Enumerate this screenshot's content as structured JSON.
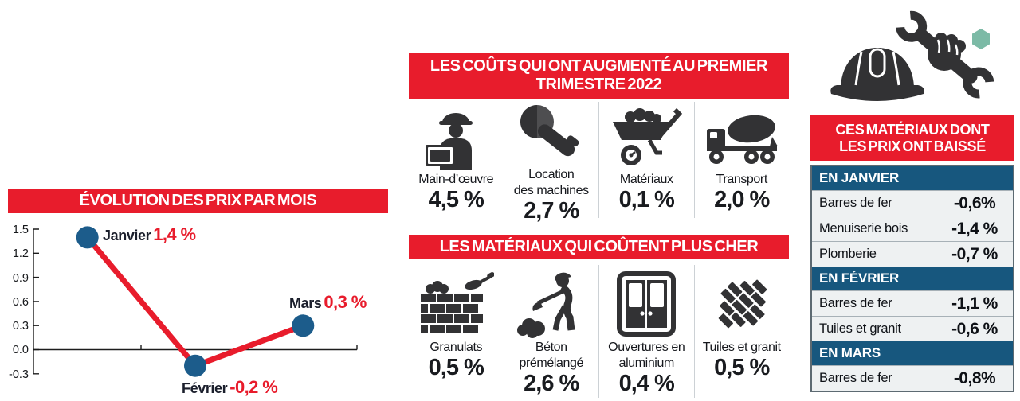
{
  "colors": {
    "red": "#e81c2c",
    "table_header_blue": "#17577e",
    "dot_blue": "#1c5c8b",
    "row_bg": "#eef1f2",
    "icon_dark": "#323234",
    "nut_green": "#7cbaa6"
  },
  "chart_data": {
    "type": "line",
    "title": "ÉVOLUTION DES PRIX PAR MOIS",
    "categories": [
      "Janvier",
      "Février",
      "Mars"
    ],
    "values": [
      1.4,
      -0.2,
      0.3
    ],
    "point_labels": [
      {
        "month": "Janvier",
        "value": "1,4 %"
      },
      {
        "month": "Février",
        "value": "-0,2 %"
      },
      {
        "month": "Mars",
        "value": "0,3 %"
      }
    ],
    "ylim": [
      -0.3,
      1.5
    ],
    "ytick_labels": [
      "1.5",
      "1.2",
      "0.9",
      "0.6",
      "0.3",
      "0.0",
      "-0.3"
    ],
    "grid": false,
    "legend": "none",
    "line_color": "#e81c2c",
    "marker_color": "#1c5c8b"
  },
  "costs_section": {
    "title_line1": "LES COÛTS QUI ONT AUGMENTÉ AU PREMIER",
    "title_line2": "TRIMESTRE 2022",
    "items": [
      {
        "icon": "worker-laptop-icon",
        "label_lines": [
          "Main-d’œuvre"
        ],
        "value": "4,5 %"
      },
      {
        "icon": "angle-grinder-icon",
        "label_lines": [
          "Location",
          "des machines"
        ],
        "value": "2,7 %"
      },
      {
        "icon": "wheelbarrow-icon",
        "label_lines": [
          "Matériaux"
        ],
        "value": "0,1 %"
      },
      {
        "icon": "mixer-truck-icon",
        "label_lines": [
          "Transport"
        ],
        "value": "2,0 %"
      }
    ]
  },
  "materials_section": {
    "title": "LES MATÉRIAUX QUI COÛTENT PLUS CHER",
    "items": [
      {
        "icon": "brick-wall-icon",
        "label_lines": [
          "Granulats"
        ],
        "value": "0,5 %"
      },
      {
        "icon": "concrete-worker-icon",
        "label_lines": [
          "Béton",
          "prémélangé"
        ],
        "value": "2,6 %"
      },
      {
        "icon": "aluminium-doors-icon",
        "label_lines": [
          "Ouvertures en",
          "aluminium"
        ],
        "value": "0,4 %"
      },
      {
        "icon": "tiles-icon",
        "label_lines": [
          "Tuiles et granit"
        ],
        "value": "0,5 %"
      }
    ]
  },
  "decrease_panel": {
    "title_line1": "CES MATÉRIAUX DONT",
    "title_line2": "LES PRIX ONT BAISSÉ",
    "sections": [
      {
        "header": "EN JANVIER",
        "rows": [
          {
            "label": "Barres de fer",
            "value": "-0,6%"
          },
          {
            "label": "Menuiserie bois",
            "value": "-1,4 %"
          },
          {
            "label": "Plomberie",
            "value": "-0,7 %"
          }
        ]
      },
      {
        "header": "EN FÉVRIER",
        "rows": [
          {
            "label": "Barres de fer",
            "value": "-1,1 %"
          },
          {
            "label": "Tuiles et granit",
            "value": "-0,6 %"
          }
        ]
      },
      {
        "header": "EN MARS",
        "rows": [
          {
            "label": "Barres de fer",
            "value": "-0,8%"
          }
        ]
      }
    ]
  }
}
